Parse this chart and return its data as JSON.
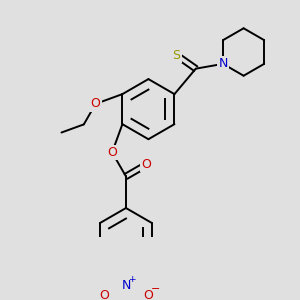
{
  "background_color": "#e0e0e0",
  "bond_color": "#000000",
  "S_color": "#999900",
  "N_color": "#0000cc",
  "O_color": "#cc0000",
  "line_width": 1.4,
  "font_size": 9,
  "figsize": [
    3.0,
    3.0
  ],
  "dpi": 100,
  "xlim": [
    0,
    300
  ],
  "ylim": [
    0,
    300
  ]
}
